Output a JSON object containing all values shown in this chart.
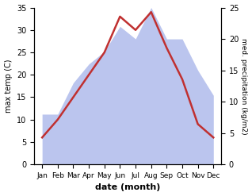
{
  "months": [
    "Jan",
    "Feb",
    "Mar",
    "Apr",
    "May",
    "Jun",
    "Jul",
    "Aug",
    "Sep",
    "Oct",
    "Nov",
    "Dec"
  ],
  "temperature": [
    6,
    10,
    15,
    20,
    25,
    33,
    30,
    34,
    26,
    19,
    9,
    6
  ],
  "precipitation": [
    8,
    8,
    13,
    16,
    18,
    22,
    20,
    25,
    20,
    20,
    15,
    11
  ],
  "temp_color": "#c03030",
  "precip_fill_color": "#bbc5ee",
  "precip_fill_alpha": 1.0,
  "temp_ylim": [
    0,
    35
  ],
  "precip_ylim": [
    0,
    25
  ],
  "temp_yticks": [
    0,
    5,
    10,
    15,
    20,
    25,
    30,
    35
  ],
  "precip_yticks": [
    0,
    5,
    10,
    15,
    20,
    25
  ],
  "xlabel": "date (month)",
  "ylabel_left": "max temp (C)",
  "ylabel_right": "med. precipitation (kg/m2)",
  "figsize": [
    3.18,
    2.47
  ],
  "dpi": 100,
  "temp_linewidth": 1.8
}
